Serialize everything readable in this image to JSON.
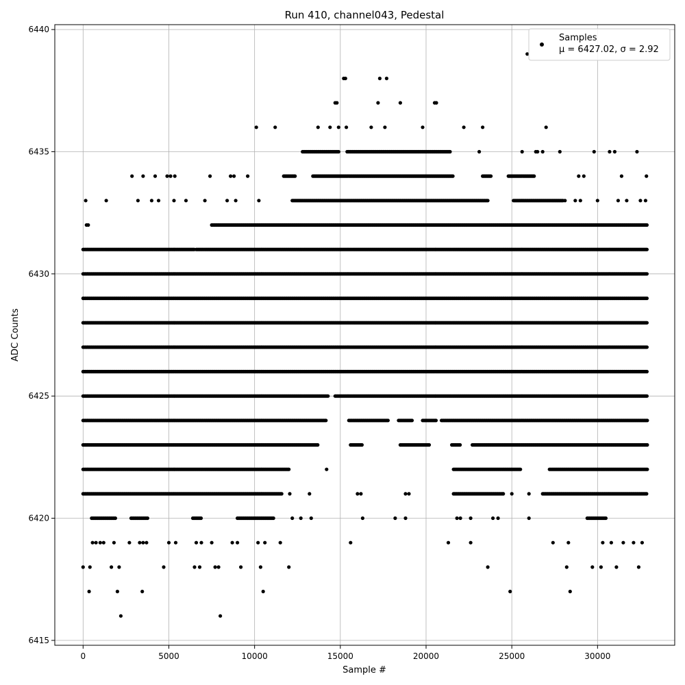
{
  "chart_data": {
    "type": "scatter",
    "title": "Run 410, channel043, Pedestal",
    "xlabel": "Sample #",
    "ylabel": "ADC Counts",
    "xlim": [
      -1650,
      34500
    ],
    "ylim": [
      6414.8,
      6440.2
    ],
    "xticks": [
      0,
      5000,
      10000,
      15000,
      20000,
      25000,
      30000
    ],
    "xtick_labels": [
      "0",
      "5000",
      "10000",
      "15000",
      "20000",
      "25000",
      "30000"
    ],
    "yticks": [
      6415,
      6420,
      6425,
      6430,
      6435,
      6440
    ],
    "ytick_labels": [
      "6415",
      "6420",
      "6425",
      "6430",
      "6435",
      "6440"
    ],
    "grid": true,
    "marker_color": "#000000",
    "legend": {
      "placement": "upper right",
      "series_label": "Samples",
      "stats_label": "μ = 6427.02, σ = 2.92"
    },
    "series": [
      {
        "name": "Samples",
        "note_ranges": "Each level lists [start, end] sample ranges with near-continuous samples; isolated points listed in points.",
        "levels": [
          {
            "y": 6426,
            "ranges": [
              [
                0,
                32900
              ]
            ]
          },
          {
            "y": 6427,
            "ranges": [
              [
                0,
                32900
              ]
            ]
          },
          {
            "y": 6428,
            "ranges": [
              [
                0,
                32900
              ]
            ]
          },
          {
            "y": 6429,
            "ranges": [
              [
                0,
                32900
              ]
            ]
          },
          {
            "y": 6430,
            "ranges": [
              [
                0,
                32900
              ]
            ]
          },
          {
            "y": 6425,
            "ranges": [
              [
                0,
                14300
              ],
              [
                14700,
                32900
              ]
            ]
          },
          {
            "y": 6424,
            "ranges": [
              [
                0,
                14200
              ],
              [
                15500,
                17800
              ],
              [
                18400,
                19200
              ],
              [
                19800,
                20600
              ],
              [
                20900,
                32900
              ]
            ]
          },
          {
            "y": 6423,
            "ranges": [
              [
                0,
                13700
              ],
              [
                15600,
                16300
              ],
              [
                18500,
                20200
              ],
              [
                21500,
                22000
              ],
              [
                22700,
                32900
              ]
            ]
          },
          {
            "y": 6431,
            "ranges": [
              [
                0,
                6500
              ],
              [
                6600,
                32900
              ]
            ]
          },
          {
            "y": 6432,
            "ranges": [
              [
                7500,
                32900
              ]
            ]
          },
          {
            "y": 6433,
            "ranges": [
              [
                12200,
                23600
              ],
              [
                25100,
                28000
              ]
            ]
          },
          {
            "y": 6434,
            "ranges": [
              [
                11700,
                12400
              ],
              [
                13400,
                21600
              ],
              [
                23300,
                23800
              ],
              [
                24800,
                26300
              ]
            ]
          },
          {
            "y": 6435,
            "ranges": [
              [
                12800,
                14900
              ],
              [
                15400,
                21400
              ]
            ]
          },
          {
            "y": 6422,
            "ranges": [
              [
                0,
                12000
              ],
              [
                21600,
                25500
              ],
              [
                27200,
                32900
              ]
            ]
          },
          {
            "y": 6421,
            "ranges": [
              [
                0,
                11600
              ],
              [
                21600,
                24500
              ],
              [
                26800,
                32900
              ]
            ]
          },
          {
            "y": 6420,
            "ranges": [
              [
                500,
                1900
              ],
              [
                2800,
                3800
              ],
              [
                6400,
                6900
              ],
              [
                9000,
                11100
              ],
              [
                29400,
                30500
              ]
            ]
          }
        ],
        "points": [
          [
            0,
            6418
          ],
          [
            150,
            6433
          ],
          [
            200,
            6432
          ],
          [
            300,
            6432
          ],
          [
            350,
            6417
          ],
          [
            400,
            6418
          ],
          [
            550,
            6419
          ],
          [
            750,
            6419
          ],
          [
            1000,
            6419
          ],
          [
            1200,
            6419
          ],
          [
            1350,
            6433
          ],
          [
            1650,
            6418
          ],
          [
            1800,
            6419
          ],
          [
            2000,
            6417
          ],
          [
            2100,
            6418
          ],
          [
            2200,
            6416
          ],
          [
            2700,
            6419
          ],
          [
            2850,
            6434
          ],
          [
            3200,
            6433
          ],
          [
            3300,
            6419
          ],
          [
            3450,
            6417
          ],
          [
            3500,
            6419
          ],
          [
            3500,
            6434
          ],
          [
            3700,
            6419
          ],
          [
            4000,
            6433
          ],
          [
            4200,
            6434
          ],
          [
            4400,
            6433
          ],
          [
            4700,
            6418
          ],
          [
            4900,
            6434
          ],
          [
            5000,
            6419
          ],
          [
            5100,
            6434
          ],
          [
            5300,
            6433
          ],
          [
            5350,
            6434
          ],
          [
            5400,
            6419
          ],
          [
            6000,
            6433
          ],
          [
            6500,
            6418
          ],
          [
            6600,
            6419
          ],
          [
            6800,
            6418
          ],
          [
            6900,
            6419
          ],
          [
            7100,
            6433
          ],
          [
            7400,
            6434
          ],
          [
            7500,
            6419
          ],
          [
            7700,
            6418
          ],
          [
            7900,
            6418
          ],
          [
            8000,
            6416
          ],
          [
            8400,
            6433
          ],
          [
            8600,
            6434
          ],
          [
            8700,
            6419
          ],
          [
            8800,
            6434
          ],
          [
            8900,
            6433
          ],
          [
            9000,
            6419
          ],
          [
            9200,
            6418
          ],
          [
            9600,
            6434
          ],
          [
            10100,
            6436
          ],
          [
            10200,
            6419
          ],
          [
            10250,
            6433
          ],
          [
            10350,
            6418
          ],
          [
            10500,
            6417
          ],
          [
            10600,
            6419
          ],
          [
            11200,
            6436
          ],
          [
            11500,
            6419
          ],
          [
            12000,
            6418
          ],
          [
            12050,
            6421
          ],
          [
            12200,
            6420
          ],
          [
            12700,
            6420
          ],
          [
            13200,
            6421
          ],
          [
            13300,
            6420
          ],
          [
            13700,
            6436
          ],
          [
            14200,
            6422
          ],
          [
            14400,
            6436
          ],
          [
            14700,
            6437
          ],
          [
            14800,
            6437
          ],
          [
            14900,
            6436
          ],
          [
            15200,
            6438
          ],
          [
            15300,
            6438
          ],
          [
            15350,
            6436
          ],
          [
            15600,
            6419
          ],
          [
            16000,
            6421
          ],
          [
            16200,
            6421
          ],
          [
            16300,
            6420
          ],
          [
            16800,
            6436
          ],
          [
            17200,
            6437
          ],
          [
            17300,
            6438
          ],
          [
            17600,
            6436
          ],
          [
            17700,
            6438
          ],
          [
            18200,
            6420
          ],
          [
            18500,
            6437
          ],
          [
            18800,
            6420
          ],
          [
            18800,
            6421
          ],
          [
            19000,
            6421
          ],
          [
            19800,
            6436
          ],
          [
            20500,
            6437
          ],
          [
            20600,
            6437
          ],
          [
            21300,
            6419
          ],
          [
            21800,
            6420
          ],
          [
            22000,
            6420
          ],
          [
            22200,
            6436
          ],
          [
            22600,
            6419
          ],
          [
            22600,
            6420
          ],
          [
            23100,
            6435
          ],
          [
            23300,
            6436
          ],
          [
            23600,
            6418
          ],
          [
            23900,
            6420
          ],
          [
            24200,
            6420
          ],
          [
            24500,
            6421
          ],
          [
            24900,
            6417
          ],
          [
            25000,
            6421
          ],
          [
            25600,
            6435
          ],
          [
            25900,
            6439
          ],
          [
            26000,
            6420
          ],
          [
            26000,
            6421
          ],
          [
            26400,
            6435
          ],
          [
            26500,
            6435
          ],
          [
            26800,
            6435
          ],
          [
            27000,
            6436
          ],
          [
            27400,
            6419
          ],
          [
            27800,
            6435
          ],
          [
            28100,
            6433
          ],
          [
            28200,
            6418
          ],
          [
            28300,
            6419
          ],
          [
            28400,
            6417
          ],
          [
            28700,
            6433
          ],
          [
            28900,
            6434
          ],
          [
            29000,
            6433
          ],
          [
            29200,
            6434
          ],
          [
            29700,
            6418
          ],
          [
            29800,
            6435
          ],
          [
            30000,
            6433
          ],
          [
            30200,
            6418
          ],
          [
            30300,
            6419
          ],
          [
            30700,
            6435
          ],
          [
            30800,
            6419
          ],
          [
            31000,
            6435
          ],
          [
            31100,
            6418
          ],
          [
            31200,
            6433
          ],
          [
            31400,
            6434
          ],
          [
            31500,
            6419
          ],
          [
            31700,
            6433
          ],
          [
            32100,
            6419
          ],
          [
            32300,
            6435
          ],
          [
            32400,
            6418
          ],
          [
            32500,
            6433
          ],
          [
            32600,
            6419
          ],
          [
            32800,
            6433
          ],
          [
            32850,
            6434
          ]
        ]
      }
    ]
  }
}
